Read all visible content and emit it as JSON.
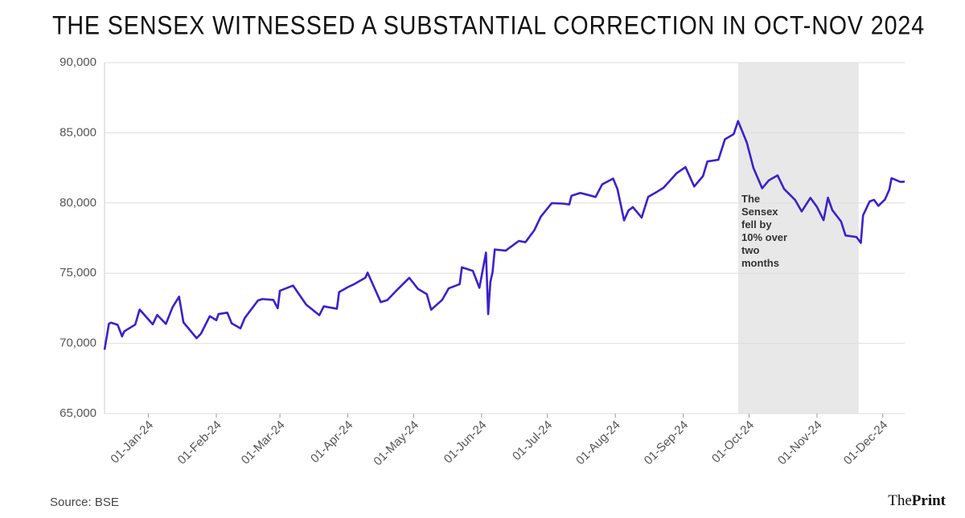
{
  "chart_data": {
    "type": "line",
    "title": "THE SENSEX WITNESSED A SUBSTANTIAL CORRECTION IN OCT-NOV 2024",
    "annotation": "The Sensex fell by 10% over two months",
    "shaded_region": [
      "2024-09-26",
      "2024-11-20"
    ],
    "source": "Source: BSE",
    "logo": {
      "the": "The",
      "print": "Print"
    },
    "xlim": [
      "2023-12-12",
      "2024-12-11"
    ],
    "xticks": [
      {
        "value": "2024-01-01",
        "label": "01-Jan-24"
      },
      {
        "value": "2024-02-01",
        "label": "01-Feb-24"
      },
      {
        "value": "2024-03-01",
        "label": "01-Mar-24"
      },
      {
        "value": "2024-04-01",
        "label": "01-Apr-24"
      },
      {
        "value": "2024-05-01",
        "label": "01-May-24"
      },
      {
        "value": "2024-06-01",
        "label": "01-Jun-24"
      },
      {
        "value": "2024-07-01",
        "label": "01-Jul-24"
      },
      {
        "value": "2024-08-01",
        "label": "01-Aug-24"
      },
      {
        "value": "2024-09-01",
        "label": "01-Sep-24"
      },
      {
        "value": "2024-10-01",
        "label": "01-Oct-24"
      },
      {
        "value": "2024-11-01",
        "label": "01-Nov-24"
      },
      {
        "value": "2024-12-01",
        "label": "01-Dec-24"
      }
    ],
    "ylim": [
      65000,
      90000
    ],
    "yticks": [
      {
        "value": 65000,
        "label": "65,000"
      },
      {
        "value": 70000,
        "label": "70,000"
      },
      {
        "value": 75000,
        "label": "75,000"
      },
      {
        "value": 80000,
        "label": "80,000"
      },
      {
        "value": 85000,
        "label": "85,000"
      },
      {
        "value": 90000,
        "label": "90,000"
      }
    ],
    "grid": true,
    "color": "#3b20cf",
    "x": [
      "2023-12-12",
      "2023-12-14",
      "2023-12-15",
      "2023-12-18",
      "2023-12-20",
      "2023-12-21",
      "2023-12-26",
      "2023-12-28",
      "2023-12-29",
      "2024-01-03",
      "2024-01-05",
      "2024-01-09",
      "2024-01-12",
      "2024-01-15",
      "2024-01-17",
      "2024-01-23",
      "2024-01-25",
      "2024-01-29",
      "2024-01-31",
      "2024-02-01",
      "2024-02-02",
      "2024-02-06",
      "2024-02-08",
      "2024-02-12",
      "2024-02-14",
      "2024-02-20",
      "2024-02-22",
      "2024-02-27",
      "2024-02-29",
      "2024-03-01",
      "2024-03-07",
      "2024-03-13",
      "2024-03-19",
      "2024-03-21",
      "2024-03-27",
      "2024-03-28",
      "2024-04-01",
      "2024-04-04",
      "2024-04-09",
      "2024-04-10",
      "2024-04-16",
      "2024-04-19",
      "2024-04-23",
      "2024-04-29",
      "2024-05-03",
      "2024-05-07",
      "2024-05-09",
      "2024-05-14",
      "2024-05-17",
      "2024-05-22",
      "2024-05-23",
      "2024-05-28",
      "2024-05-31",
      "2024-06-03",
      "2024-06-04",
      "2024-06-05",
      "2024-06-06",
      "2024-06-07",
      "2024-06-12",
      "2024-06-18",
      "2024-06-21",
      "2024-06-25",
      "2024-06-28",
      "2024-07-03",
      "2024-07-08",
      "2024-07-11",
      "2024-07-12",
      "2024-07-16",
      "2024-07-19",
      "2024-07-23",
      "2024-07-26",
      "2024-07-31",
      "2024-08-02",
      "2024-08-05",
      "2024-08-07",
      "2024-08-09",
      "2024-08-13",
      "2024-08-16",
      "2024-08-20",
      "2024-08-23",
      "2024-08-29",
      "2024-09-02",
      "2024-09-06",
      "2024-09-10",
      "2024-09-12",
      "2024-09-17",
      "2024-09-20",
      "2024-09-24",
      "2024-09-26",
      "2024-09-30",
      "2024-10-03",
      "2024-10-07",
      "2024-10-10",
      "2024-10-14",
      "2024-10-17",
      "2024-10-22",
      "2024-10-25",
      "2024-10-29",
      "2024-11-01",
      "2024-11-04",
      "2024-11-06",
      "2024-11-08",
      "2024-11-12",
      "2024-11-14",
      "2024-11-19",
      "2024-11-21",
      "2024-11-22",
      "2024-11-25",
      "2024-11-27",
      "2024-11-29",
      "2024-12-02",
      "2024-12-04",
      "2024-12-05",
      "2024-12-09",
      "2024-12-10",
      "2024-12-11"
    ],
    "values": [
      69550,
      71400,
      71480,
      71320,
      70500,
      70860,
      71340,
      72410,
      72240,
      71360,
      72030,
      71390,
      72570,
      73330,
      71500,
      70370,
      70700,
      71940,
      71750,
      71650,
      72090,
      72190,
      71430,
      71070,
      71820,
      73060,
      73160,
      73100,
      72500,
      73750,
      74120,
      72760,
      72010,
      72640,
      72470,
      73650,
      74010,
      74230,
      74680,
      75040,
      72940,
      73090,
      73740,
      74670,
      73880,
      73510,
      72400,
      73100,
      73920,
      74220,
      75420,
      75170,
      73960,
      76470,
      72080,
      74380,
      75070,
      76690,
      76610,
      77300,
      77210,
      78050,
      79030,
      79990,
      79960,
      79900,
      80520,
      80720,
      80600,
      80430,
      81330,
      81740,
      80980,
      78760,
      79470,
      79710,
      78960,
      80440,
      80800,
      81090,
      82130,
      82560,
      81180,
      81920,
      82960,
      83080,
      84540,
      84910,
      85840,
      84300,
      82500,
      81050,
      81610,
      81970,
      81000,
      80220,
      79400,
      80370,
      79720,
      78780,
      80380,
      79490,
      78680,
      77690,
      77580,
      77160,
      79120,
      80110,
      80230,
      79800,
      80250,
      80960,
      81770,
      81510,
      81510,
      81530
    ]
  }
}
